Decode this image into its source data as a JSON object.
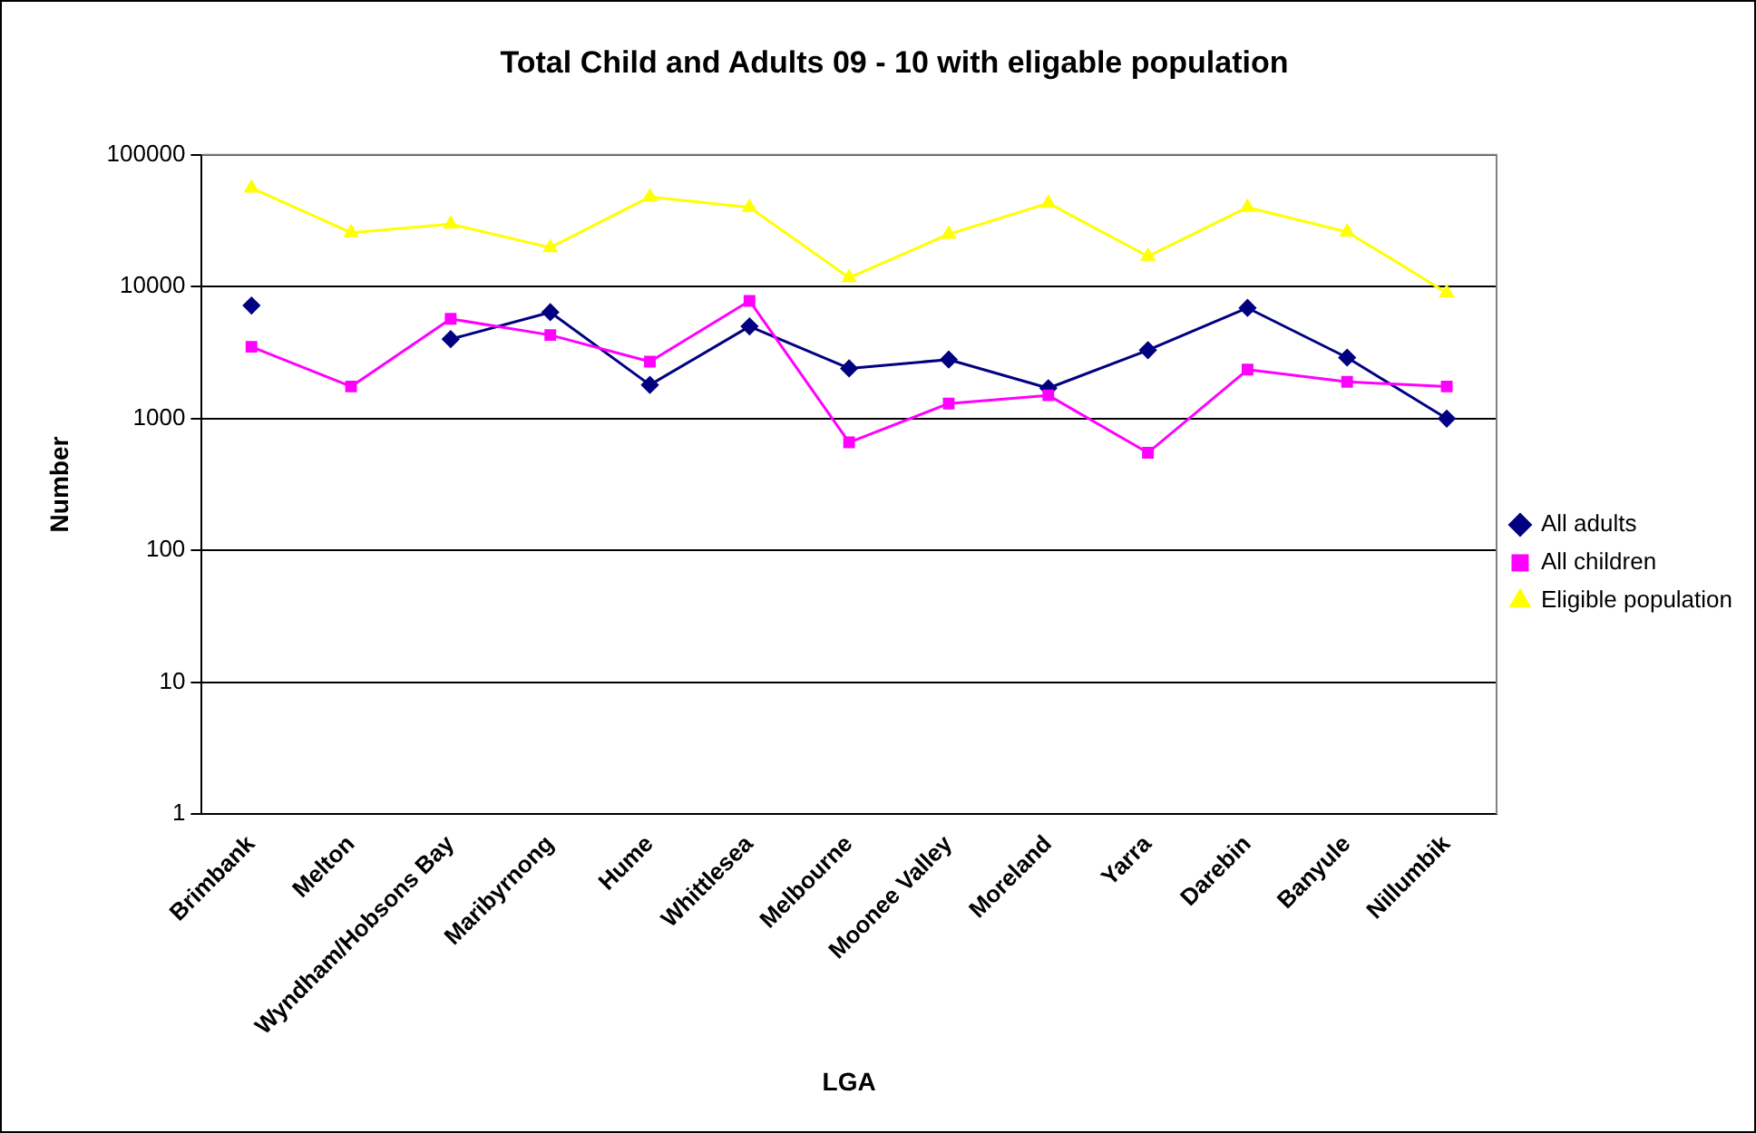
{
  "chart_data": {
    "type": "line",
    "title": "Total Child and Adults 09 - 10 with eligable population",
    "xlabel": "LGA",
    "ylabel": "Number",
    "categories": [
      "Brimbank",
      "Melton",
      "Wyndham/Hobsons Bay",
      "Maribyrnong",
      "Hume",
      "Whittlesea",
      "Melbourne",
      "Moonee Valley",
      "Moreland",
      "Yarra",
      "Darebin",
      "Banyule",
      "Nillumbik"
    ],
    "series": [
      {
        "name": "All adults",
        "color": "#000080",
        "marker": "diamond",
        "values": [
          7200,
          null,
          4000,
          6400,
          1800,
          5000,
          2400,
          2800,
          1700,
          3300,
          6900,
          2900,
          1000
        ]
      },
      {
        "name": "All children",
        "color": "#ff00ff",
        "marker": "square",
        "values": [
          3500,
          1750,
          5700,
          4300,
          2700,
          7800,
          660,
          1300,
          1500,
          550,
          2350,
          1900,
          1750
        ]
      },
      {
        "name": "Eligible population",
        "color": "#ffff00",
        "marker": "triangle",
        "values": [
          56000,
          25700,
          29800,
          19800,
          48000,
          40000,
          11700,
          25000,
          43000,
          17000,
          40000,
          26000,
          9000
        ]
      }
    ],
    "log": true,
    "ylim": [
      1,
      100000
    ],
    "yticks": [
      1,
      10,
      100,
      1000,
      10000,
      100000
    ],
    "grid": "y",
    "legend": "right",
    "line_style": "solid"
  }
}
